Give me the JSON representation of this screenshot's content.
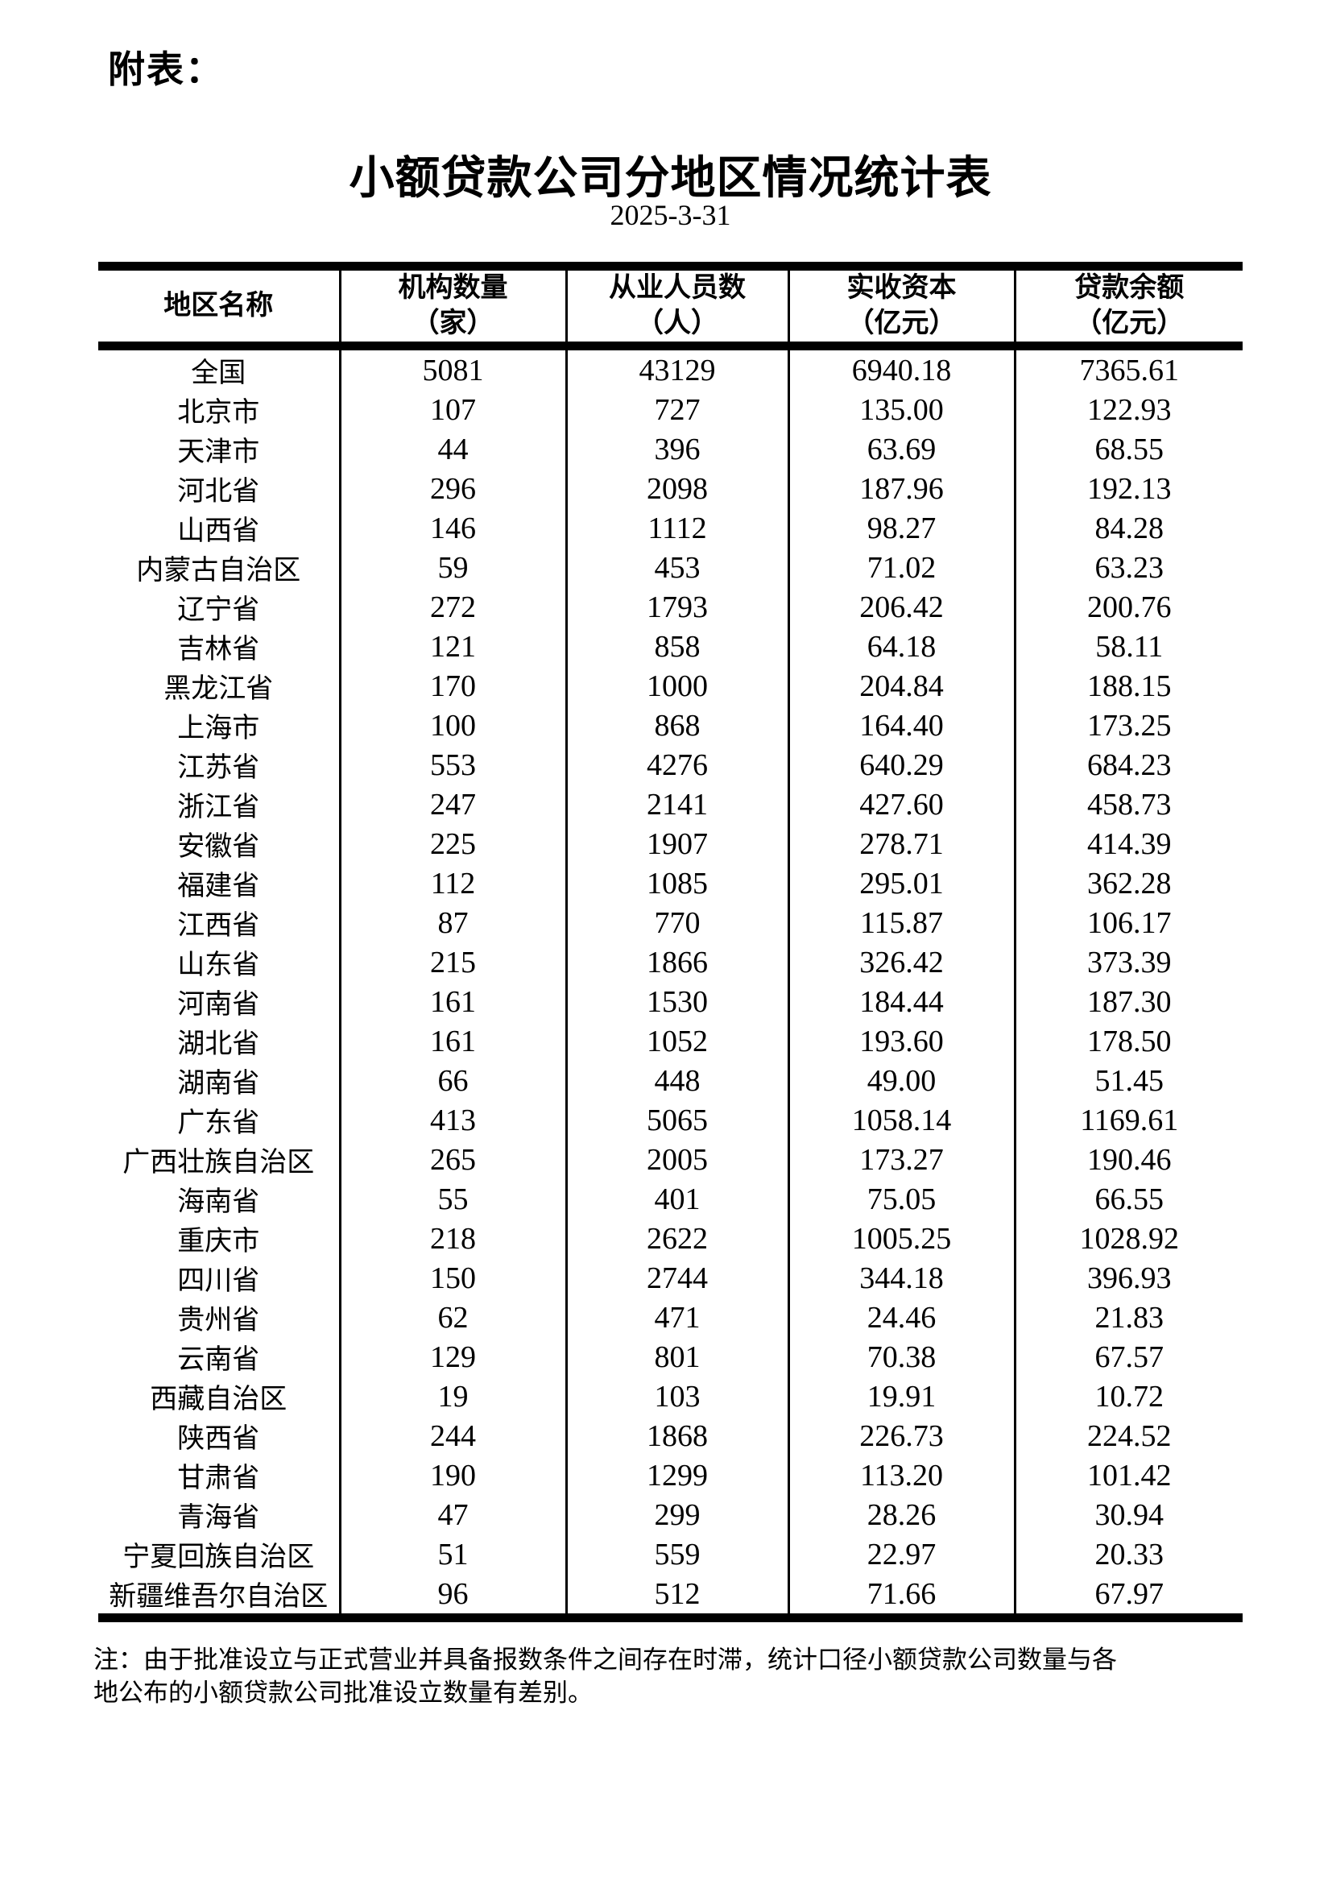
{
  "page": {
    "annex_label": "附表：",
    "title": "小额贷款公司分地区情况统计表",
    "date": "2025-3-31",
    "note_lines": [
      "注：由于批准设立与正式营业并具备报数条件之间存在时滞，统计口径小额贷款公司数量与各",
      "地公布的小额贷款公司批准设立数量有差别。"
    ]
  },
  "table": {
    "columns": [
      {
        "title": "地区名称",
        "unit": ""
      },
      {
        "title": "机构数量",
        "unit": "（家）"
      },
      {
        "title": "从业人员数",
        "unit": "（人）"
      },
      {
        "title": "实收资本",
        "unit": "（亿元）"
      },
      {
        "title": "贷款余额",
        "unit": "（亿元）"
      }
    ],
    "rows": [
      [
        "全国",
        "5081",
        "43129",
        "6940.18",
        "7365.61"
      ],
      [
        "北京市",
        "107",
        "727",
        "135.00",
        "122.93"
      ],
      [
        "天津市",
        "44",
        "396",
        "63.69",
        "68.55"
      ],
      [
        "河北省",
        "296",
        "2098",
        "187.96",
        "192.13"
      ],
      [
        "山西省",
        "146",
        "1112",
        "98.27",
        "84.28"
      ],
      [
        "内蒙古自治区",
        "59",
        "453",
        "71.02",
        "63.23"
      ],
      [
        "辽宁省",
        "272",
        "1793",
        "206.42",
        "200.76"
      ],
      [
        "吉林省",
        "121",
        "858",
        "64.18",
        "58.11"
      ],
      [
        "黑龙江省",
        "170",
        "1000",
        "204.84",
        "188.15"
      ],
      [
        "上海市",
        "100",
        "868",
        "164.40",
        "173.25"
      ],
      [
        "江苏省",
        "553",
        "4276",
        "640.29",
        "684.23"
      ],
      [
        "浙江省",
        "247",
        "2141",
        "427.60",
        "458.73"
      ],
      [
        "安徽省",
        "225",
        "1907",
        "278.71",
        "414.39"
      ],
      [
        "福建省",
        "112",
        "1085",
        "295.01",
        "362.28"
      ],
      [
        "江西省",
        "87",
        "770",
        "115.87",
        "106.17"
      ],
      [
        "山东省",
        "215",
        "1866",
        "326.42",
        "373.39"
      ],
      [
        "河南省",
        "161",
        "1530",
        "184.44",
        "187.30"
      ],
      [
        "湖北省",
        "161",
        "1052",
        "193.60",
        "178.50"
      ],
      [
        "湖南省",
        "66",
        "448",
        "49.00",
        "51.45"
      ],
      [
        "广东省",
        "413",
        "5065",
        "1058.14",
        "1169.61"
      ],
      [
        "广西壮族自治区",
        "265",
        "2005",
        "173.27",
        "190.46"
      ],
      [
        "海南省",
        "55",
        "401",
        "75.05",
        "66.55"
      ],
      [
        "重庆市",
        "218",
        "2622",
        "1005.25",
        "1028.92"
      ],
      [
        "四川省",
        "150",
        "2744",
        "344.18",
        "396.93"
      ],
      [
        "贵州省",
        "62",
        "471",
        "24.46",
        "21.83"
      ],
      [
        "云南省",
        "129",
        "801",
        "70.38",
        "67.57"
      ],
      [
        "西藏自治区",
        "19",
        "103",
        "19.91",
        "10.72"
      ],
      [
        "陕西省",
        "244",
        "1868",
        "226.73",
        "224.52"
      ],
      [
        "甘肃省",
        "190",
        "1299",
        "113.20",
        "101.42"
      ],
      [
        "青海省",
        "47",
        "299",
        "28.26",
        "30.94"
      ],
      [
        "宁夏回族自治区",
        "51",
        "559",
        "22.97",
        "20.33"
      ],
      [
        "新疆维吾尔自治区",
        "96",
        "512",
        "71.66",
        "67.97"
      ]
    ]
  }
}
